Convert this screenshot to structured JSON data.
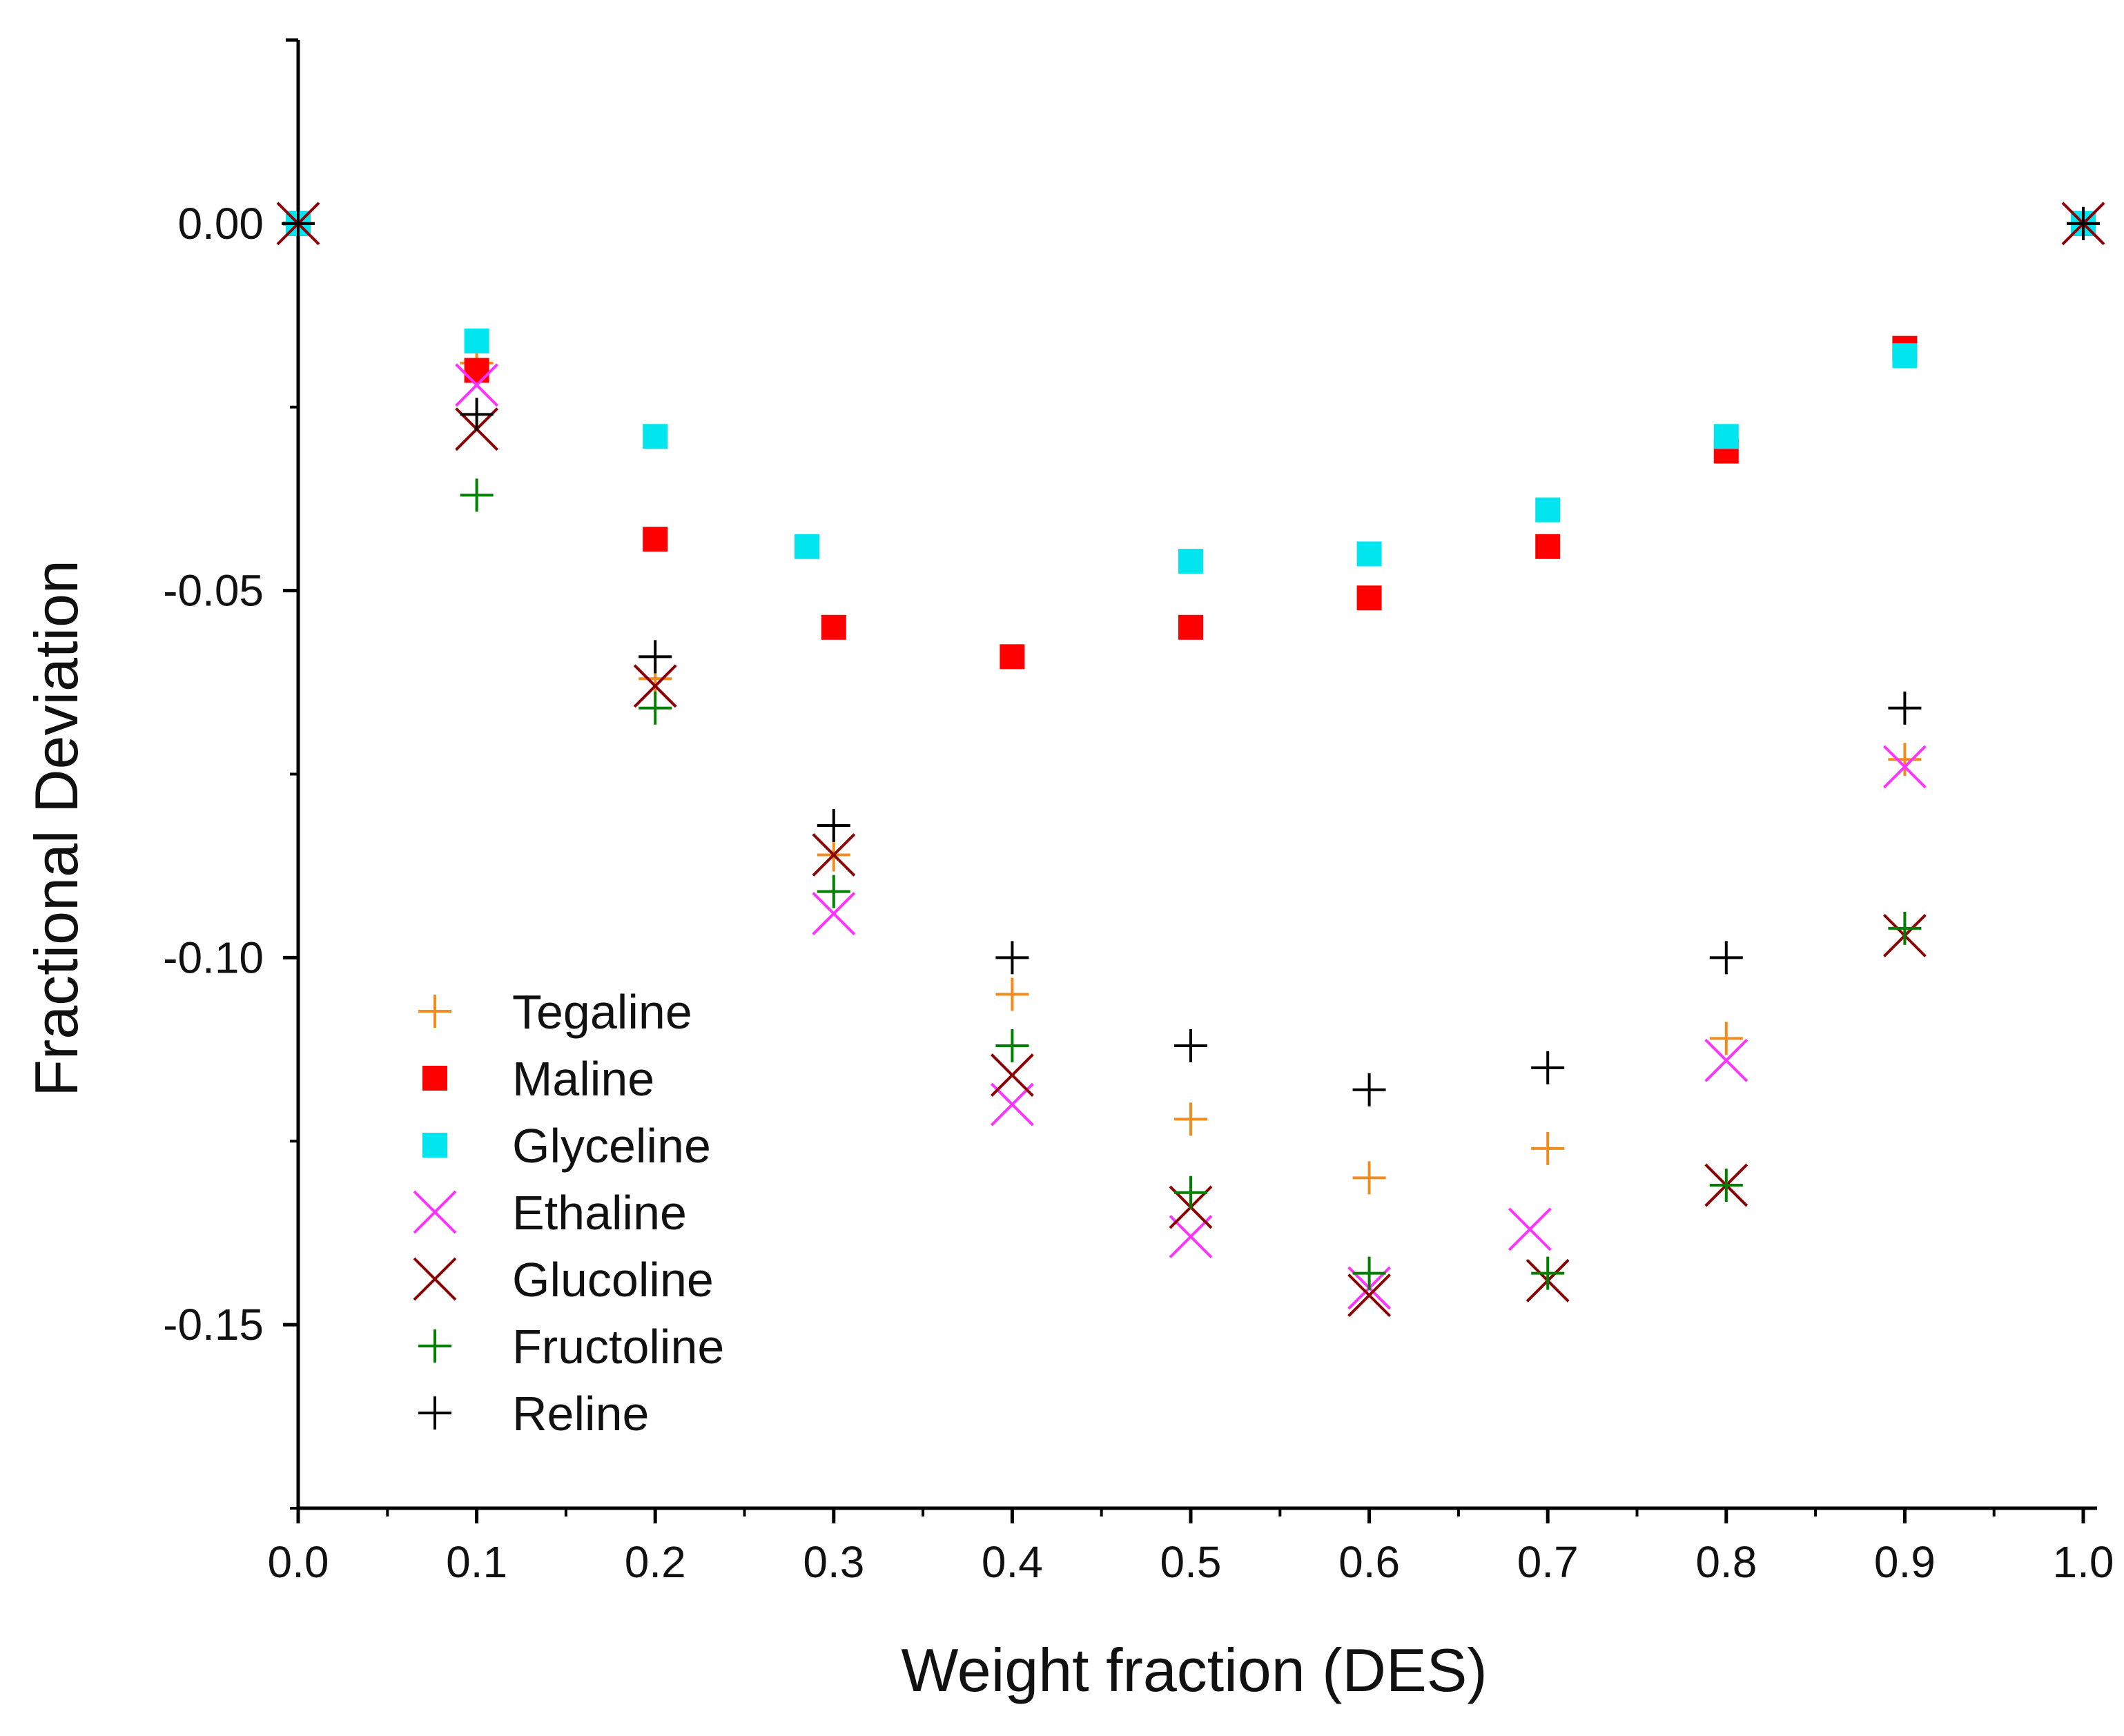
{
  "chart_data": {
    "type": "scatter",
    "title": "",
    "xlabel": "Weight fraction (DES)",
    "ylabel": "Fractional Deviation",
    "xlim": [
      0.0,
      1.0
    ],
    "ylim": [
      -0.175,
      0.025
    ],
    "x_ticks": [
      0.0,
      0.1,
      0.2,
      0.3,
      0.4,
      0.5,
      0.6,
      0.7,
      0.8,
      0.9,
      1.0
    ],
    "x_tick_labels": [
      "0.0",
      "0.1",
      "0.2",
      "0.3",
      "0.4",
      "0.5",
      "0.6",
      "0.7",
      "0.8",
      "0.9",
      "1.0"
    ],
    "y_ticks": [
      0.0,
      -0.05,
      -0.1,
      -0.15
    ],
    "y_tick_labels": [
      "0.00",
      "-0.05",
      "-0.10",
      "-0.15"
    ],
    "grid": false,
    "legend_position": "bottom-left",
    "series": [
      {
        "name": "Tegaline",
        "marker": "plus",
        "color": "#f28c1e",
        "x": [
          0.0,
          0.1,
          0.2,
          0.3,
          0.4,
          0.5,
          0.6,
          0.7,
          0.8,
          0.9,
          1.0
        ],
        "y": [
          0.0,
          -0.019,
          -0.062,
          -0.086,
          -0.105,
          -0.122,
          -0.13,
          -0.126,
          -0.111,
          -0.073,
          0.0
        ]
      },
      {
        "name": "Maline",
        "marker": "square",
        "color": "#ff0000",
        "x": [
          0.0,
          0.1,
          0.2,
          0.3,
          0.4,
          0.5,
          0.6,
          0.7,
          0.8,
          0.9,
          1.0
        ],
        "y": [
          0.0,
          -0.02,
          -0.043,
          -0.055,
          -0.059,
          -0.055,
          -0.051,
          -0.044,
          -0.031,
          -0.017,
          0.0
        ]
      },
      {
        "name": "Glyceline",
        "marker": "square",
        "color": "#00e5ee",
        "x": [
          0.0,
          0.1,
          0.2,
          0.285,
          0.5,
          0.6,
          0.7,
          0.8,
          0.9,
          1.0
        ],
        "y": [
          0.0,
          -0.016,
          -0.029,
          -0.044,
          -0.046,
          -0.045,
          -0.039,
          -0.029,
          -0.018,
          0.0
        ]
      },
      {
        "name": "Ethaline",
        "marker": "x",
        "color": "#ff33ff",
        "x": [
          0.0,
          0.1,
          0.2,
          0.3,
          0.4,
          0.5,
          0.6,
          0.69,
          0.8,
          0.9,
          1.0
        ],
        "y": [
          0.0,
          -0.022,
          -0.063,
          -0.094,
          -0.12,
          -0.138,
          -0.145,
          -0.137,
          -0.114,
          -0.074,
          0.0
        ]
      },
      {
        "name": "Glucoline",
        "marker": "x",
        "color": "#8b0000",
        "x": [
          0.0,
          0.1,
          0.2,
          0.3,
          0.4,
          0.5,
          0.6,
          0.7,
          0.8,
          0.9,
          1.0
        ],
        "y": [
          0.0,
          -0.028,
          -0.063,
          -0.086,
          -0.116,
          -0.134,
          -0.146,
          -0.144,
          -0.131,
          -0.097,
          0.0
        ]
      },
      {
        "name": "Fructoline",
        "marker": "plus",
        "color": "#008000",
        "x": [
          0.0,
          0.1,
          0.2,
          0.3,
          0.4,
          0.5,
          0.6,
          0.7,
          0.8,
          0.9,
          1.0
        ],
        "y": [
          0.0,
          -0.037,
          -0.066,
          -0.091,
          -0.112,
          -0.132,
          -0.143,
          -0.143,
          -0.131,
          -0.096,
          0.0
        ]
      },
      {
        "name": "Reline",
        "marker": "plus",
        "color": "#000000",
        "x": [
          0.0,
          0.1,
          0.2,
          0.3,
          0.4,
          0.5,
          0.6,
          0.7,
          0.8,
          0.9,
          1.0
        ],
        "y": [
          0.0,
          -0.026,
          -0.059,
          -0.082,
          -0.1,
          -0.112,
          -0.118,
          -0.115,
          -0.1,
          -0.066,
          0.0
        ]
      }
    ]
  }
}
